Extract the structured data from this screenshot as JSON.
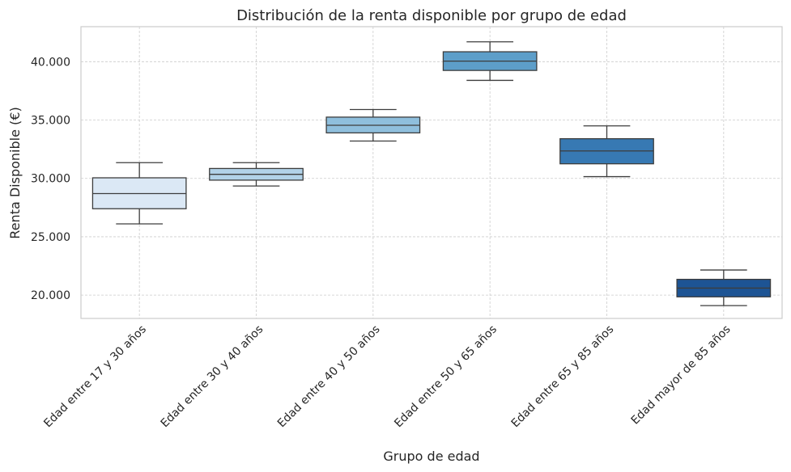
{
  "chart_data": {
    "type": "box",
    "title": "Distribución de la renta disponible por grupo de edad",
    "xlabel": "Grupo de edad",
    "ylabel": "Renta Disponible (€)",
    "ylim": [
      18000,
      43000
    ],
    "yticks": [
      20000,
      25000,
      30000,
      35000,
      40000
    ],
    "ytick_labels": [
      "20.000",
      "25.000",
      "30.000",
      "35.000",
      "40.000"
    ],
    "grid": true,
    "categories": [
      "Edad entre 17 y 30 años",
      "Edad entre 30 y 40 años",
      "Edad entre 40 y 50 años",
      "Edad entre 50 y 65 años",
      "Edad entre 65 y 85 años",
      "Edad  mayor de 85 años"
    ],
    "boxes": [
      {
        "min": 26100,
        "q1": 27400,
        "median": 28700,
        "q3": 30050,
        "max": 31350,
        "color": "#dbe8f5"
      },
      {
        "min": 29350,
        "q1": 29850,
        "median": 30350,
        "q3": 30850,
        "max": 31350,
        "color": "#b2d2e8"
      },
      {
        "min": 33200,
        "q1": 33900,
        "median": 34550,
        "q3": 35250,
        "max": 35900,
        "color": "#8fbfdd"
      },
      {
        "min": 38400,
        "q1": 39250,
        "median": 40050,
        "q3": 40850,
        "max": 41700,
        "color": "#5d9ec9"
      },
      {
        "min": 30150,
        "q1": 31250,
        "median": 32350,
        "q3": 33400,
        "max": 34500,
        "color": "#3779b3"
      },
      {
        "min": 19100,
        "q1": 19850,
        "median": 20600,
        "q3": 21350,
        "max": 22150,
        "color": "#1d5494"
      }
    ]
  }
}
